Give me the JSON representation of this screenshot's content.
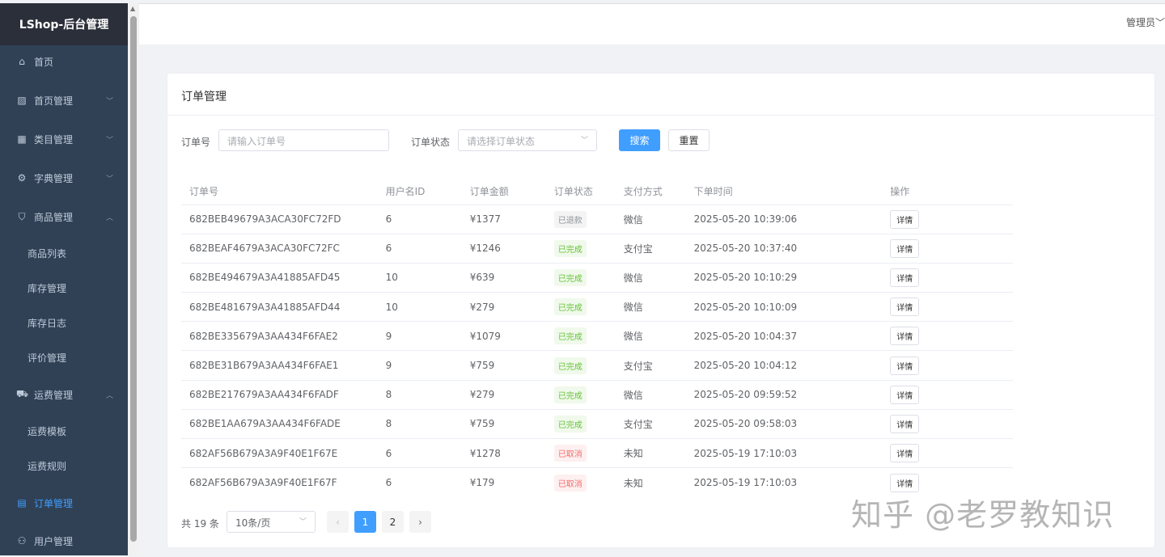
{
  "app": {
    "title": "LShop-后台管理",
    "user": "管理员"
  },
  "sidebar": {
    "items": [
      {
        "label": "首页",
        "icon": "home-icon",
        "symbol": "⌂",
        "chevron": ""
      },
      {
        "label": "首页管理",
        "icon": "image-icon",
        "symbol": "▨",
        "chevron": "﹀"
      },
      {
        "label": "类目管理",
        "icon": "grid-icon",
        "symbol": "▦",
        "chevron": "﹀"
      },
      {
        "label": "字典管理",
        "icon": "gear-icon",
        "symbol": "⚙",
        "chevron": "﹀"
      },
      {
        "label": "商品管理",
        "icon": "bag-icon",
        "symbol": "⛉",
        "chevron": "︿"
      },
      {
        "label": "商品列表",
        "sub": true
      },
      {
        "label": "库存管理",
        "sub": true
      },
      {
        "label": "库存日志",
        "sub": true
      },
      {
        "label": "评价管理",
        "sub": true
      },
      {
        "label": "运费管理",
        "icon": "truck-icon",
        "symbol": "⛟",
        "chevron": "︿"
      },
      {
        "label": "运费模板",
        "sub": true
      },
      {
        "label": "运费规则",
        "sub": true
      },
      {
        "label": "订单管理",
        "icon": "order-icon",
        "symbol": "▤",
        "chevron": "",
        "active": true
      },
      {
        "label": "用户管理",
        "icon": "user-icon",
        "symbol": "⚇",
        "chevron": ""
      }
    ]
  },
  "card": {
    "title": "订单管理"
  },
  "search": {
    "order_label": "订单号",
    "order_placeholder": "请输入订单号",
    "status_label": "订单状态",
    "status_placeholder": "请选择订单状态",
    "search_btn": "搜索",
    "reset_btn": "重置"
  },
  "table": {
    "headers": [
      "订单号",
      "用户名ID",
      "订单金额",
      "订单状态",
      "支付方式",
      "下单时间",
      "操作"
    ],
    "rows": [
      [
        "682BEB49679A3ACA30FC72FD",
        "6",
        "¥1377",
        "已退款",
        "微信",
        "2025-05-20 10:39:06",
        "详情"
      ],
      [
        "682BEAF4679A3ACA30FC72FC",
        "6",
        "¥1246",
        "已完成",
        "支付宝",
        "2025-05-20 10:37:40",
        "详情"
      ],
      [
        "682BE494679A3A41885AFD45",
        "10",
        "¥639",
        "已完成",
        "微信",
        "2025-05-20 10:10:29",
        "详情"
      ],
      [
        "682BE481679A3A41885AFD44",
        "10",
        "¥279",
        "已完成",
        "微信",
        "2025-05-20 10:10:09",
        "详情"
      ],
      [
        "682BE335679A3AA434F6FAE2",
        "9",
        "¥1079",
        "已完成",
        "微信",
        "2025-05-20 10:04:37",
        "详情"
      ],
      [
        "682BE31B679A3AA434F6FAE1",
        "9",
        "¥759",
        "已完成",
        "支付宝",
        "2025-05-20 10:04:12",
        "详情"
      ],
      [
        "682BE217679A3AA434F6FADF",
        "8",
        "¥279",
        "已完成",
        "微信",
        "2025-05-20 09:59:52",
        "详情"
      ],
      [
        "682BE1AA679A3AA434F6FADE",
        "8",
        "¥759",
        "已完成",
        "支付宝",
        "2025-05-20 09:58:03",
        "详情"
      ],
      [
        "682AF56B679A3A9F40E1F67E",
        "6",
        "¥1278",
        "已取消",
        "未知",
        "2025-05-19 17:10:03",
        "详情"
      ],
      [
        "682AF56B679A3A9F40E1F67F",
        "6",
        "¥179",
        "已取消",
        "未知",
        "2025-05-19 17:10:03",
        "详情"
      ]
    ]
  },
  "status_colors": {
    "已退款": [
      "#f4f4f5",
      "#909399"
    ],
    "已完成": [
      "#f0f9eb",
      "#67c23a"
    ],
    "已取消": [
      "#fef0f0",
      "#f56c6c"
    ]
  },
  "pagination": {
    "total": "共 19 条",
    "page_size": "10条/页",
    "pages": [
      "1",
      "2"
    ],
    "current": "1",
    "prev": "‹",
    "next": "›"
  },
  "watermark": "知乎 @老罗教知识"
}
